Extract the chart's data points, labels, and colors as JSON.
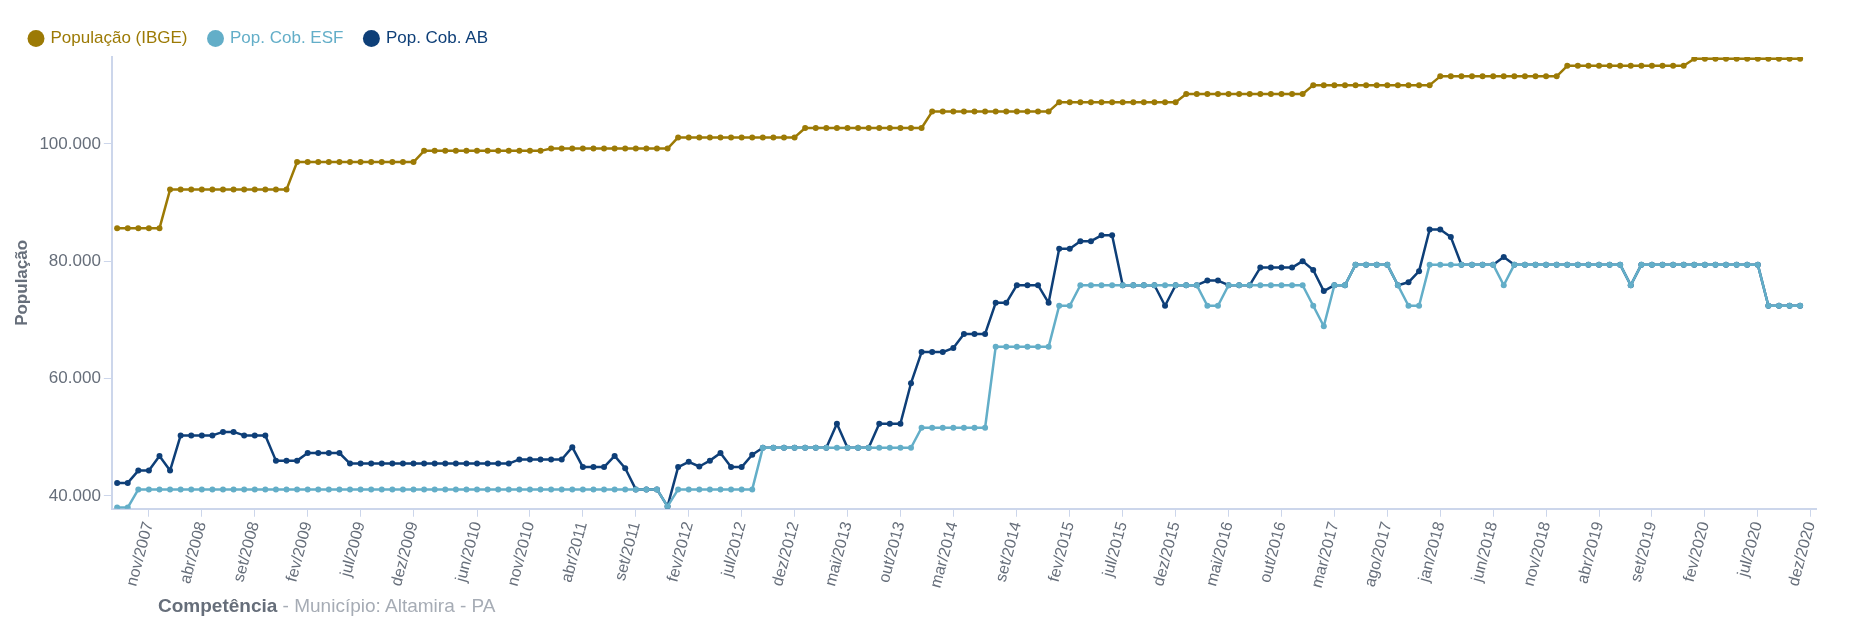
{
  "chart_data": {
    "type": "line",
    "ylabel": "População",
    "xlabel": "Competência",
    "subtitle": "- Município: Altamira - PA",
    "categories": [
      null,
      null,
      null,
      "nov/2007",
      null,
      null,
      null,
      null,
      "abr/2008",
      null,
      null,
      null,
      null,
      "set/2008",
      null,
      null,
      null,
      null,
      "fev/2009",
      null,
      null,
      null,
      null,
      "jul/2009",
      null,
      null,
      null,
      null,
      "dez/2009",
      null,
      null,
      null,
      null,
      null,
      "jun/2010",
      null,
      null,
      null,
      null,
      "nov/2010",
      null,
      null,
      null,
      null,
      "abr/2011",
      null,
      null,
      null,
      null,
      "set/2011",
      null,
      null,
      null,
      null,
      "fev/2012",
      null,
      null,
      null,
      null,
      "jul/2012",
      null,
      null,
      null,
      null,
      "dez/2012",
      null,
      null,
      null,
      null,
      "mai/2013",
      null,
      null,
      null,
      null,
      "out/2013",
      null,
      null,
      null,
      null,
      "mar/2014",
      null,
      null,
      null,
      null,
      null,
      "set/2014",
      null,
      null,
      null,
      null,
      "fev/2015",
      null,
      null,
      null,
      null,
      "jul/2015",
      null,
      null,
      null,
      null,
      "dez/2015",
      null,
      null,
      null,
      null,
      "mai/2016",
      null,
      null,
      null,
      null,
      "out/2016",
      null,
      null,
      null,
      null,
      "mar/2017",
      null,
      null,
      null,
      null,
      "ago/2017",
      null,
      null,
      null,
      null,
      "jan/2018",
      null,
      null,
      null,
      null,
      "jun/2018",
      null,
      null,
      null,
      null,
      "nov/2018",
      null,
      null,
      null,
      null,
      "abr/2019",
      null,
      null,
      null,
      null,
      "set/2019",
      null,
      null,
      null,
      null,
      "fev/2020",
      null,
      null,
      null,
      null,
      "jul/2020",
      null,
      null,
      null,
      null,
      "dez/2020"
    ],
    "series": [
      {
        "name": "População (IBGE)",
        "color": "#9c7a05",
        "values": [
          85600,
          85600,
          85600,
          85600,
          85600,
          92200,
          92200,
          92200,
          92200,
          92200,
          92200,
          92200,
          92200,
          92200,
          92200,
          92200,
          92200,
          96900,
          96900,
          96900,
          96900,
          96900,
          96900,
          96900,
          96900,
          96900,
          96900,
          96900,
          96900,
          98800,
          98800,
          98800,
          98800,
          98800,
          98800,
          98800,
          98800,
          98800,
          98800,
          98800,
          98800,
          99200,
          99200,
          99200,
          99200,
          99200,
          99200,
          99200,
          99200,
          99200,
          99200,
          99200,
          99200,
          101100,
          101100,
          101100,
          101100,
          101100,
          101100,
          101100,
          101100,
          101100,
          101100,
          101100,
          101100,
          102700,
          102700,
          102700,
          102700,
          102700,
          102700,
          102700,
          102700,
          102700,
          102700,
          102700,
          102700,
          105500,
          105500,
          105500,
          105500,
          105500,
          105500,
          105500,
          105500,
          105500,
          105500,
          105500,
          105500,
          107100,
          107100,
          107100,
          107100,
          107100,
          107100,
          107100,
          107100,
          107100,
          107100,
          107100,
          107100,
          108500,
          108500,
          108500,
          108500,
          108500,
          108500,
          108500,
          108500,
          108500,
          108500,
          108500,
          108500,
          110000,
          110000,
          110000,
          110000,
          110000,
          110000,
          110000,
          110000,
          110000,
          110000,
          110000,
          110000,
          111500,
          111500,
          111500,
          111500,
          111500,
          111500,
          111500,
          111500,
          111500,
          111500,
          111500,
          111500,
          113300,
          113300,
          113300,
          113300,
          113300,
          113300,
          113300,
          113300,
          113300,
          113300,
          113300,
          113300,
          114500,
          114500,
          114500,
          114500,
          114500,
          114500,
          114500,
          114500,
          114500,
          114500,
          114500,
          null
        ]
      },
      {
        "name": "Pop. Cob. ESF",
        "color": "#63aec8",
        "values": [
          38000,
          38000,
          41100,
          41100,
          41100,
          41100,
          41100,
          41100,
          41100,
          41100,
          41100,
          41100,
          41100,
          41100,
          41100,
          41100,
          41100,
          41100,
          41100,
          41100,
          41100,
          41100,
          41100,
          41100,
          41100,
          41100,
          41100,
          41100,
          41100,
          41100,
          41100,
          41100,
          41100,
          41100,
          41100,
          41100,
          41100,
          41100,
          41100,
          41100,
          41100,
          41100,
          41100,
          41100,
          41100,
          41100,
          41100,
          41100,
          41100,
          41100,
          41100,
          41100,
          38200,
          41100,
          41100,
          41100,
          41100,
          41100,
          41100,
          41100,
          41100,
          48200,
          48200,
          48200,
          48200,
          48200,
          48200,
          48200,
          48200,
          48200,
          48200,
          48200,
          48200,
          48200,
          48200,
          48200,
          51600,
          51600,
          51600,
          51600,
          51600,
          51600,
          51600,
          65400,
          65400,
          65400,
          65400,
          65400,
          65400,
          72400,
          72400,
          75900,
          75900,
          75900,
          75900,
          75900,
          75900,
          75900,
          75900,
          75900,
          75900,
          75900,
          75900,
          72400,
          72400,
          75900,
          75900,
          75900,
          75900,
          75900,
          75900,
          75900,
          75900,
          72400,
          68900,
          75900,
          75900,
          79400,
          79400,
          79400,
          79400,
          75900,
          72400,
          72400,
          79400,
          79400,
          79400,
          79400,
          79400,
          79400,
          79400,
          75900,
          79400,
          79400,
          79400,
          79400,
          79400,
          79400,
          79400,
          79400,
          79400,
          79400,
          79400,
          75900,
          79400,
          79400,
          79400,
          79400,
          79400,
          79400,
          79400,
          79400,
          79400,
          79400,
          79400,
          79400,
          72400,
          72400,
          72400,
          72400,
          null
        ]
      },
      {
        "name": "Pop. Cob. AB",
        "color": "#0e3f78",
        "values": [
          42200,
          42200,
          44300,
          44300,
          46800,
          44300,
          50300,
          50300,
          50300,
          50300,
          50900,
          50900,
          50300,
          50300,
          50300,
          46000,
          46000,
          46000,
          47300,
          47300,
          47300,
          47300,
          45500,
          45500,
          45500,
          45500,
          45500,
          45500,
          45500,
          45500,
          45500,
          45500,
          45500,
          45500,
          45500,
          45500,
          45500,
          45500,
          46200,
          46200,
          46200,
          46200,
          46200,
          48300,
          44900,
          44900,
          44900,
          46800,
          44700,
          41100,
          41100,
          41100,
          38200,
          44900,
          45800,
          45000,
          46000,
          47300,
          44900,
          44900,
          47000,
          48200,
          48200,
          48200,
          48200,
          48200,
          48200,
          48200,
          52300,
          48200,
          48200,
          48200,
          52300,
          52300,
          52300,
          59200,
          64500,
          64500,
          64500,
          65200,
          67600,
          67600,
          67600,
          72900,
          72900,
          75900,
          75900,
          75900,
          72900,
          82100,
          82100,
          83400,
          83400,
          84400,
          84400,
          75900,
          75900,
          75900,
          75900,
          72400,
          75900,
          75900,
          75900,
          76700,
          76700,
          75900,
          75900,
          75900,
          78900,
          78900,
          78900,
          78900,
          80000,
          78500,
          74900,
          75900,
          75900,
          79400,
          79400,
          79400,
          79400,
          75900,
          76400,
          78300,
          85400,
          85400,
          84100,
          79400,
          79400,
          79400,
          79400,
          80700,
          79400,
          79400,
          79400,
          79400,
          79400,
          79400,
          79400,
          79400,
          79400,
          79400,
          79400,
          75900,
          79400,
          79400,
          79400,
          79400,
          79400,
          79400,
          79400,
          79400,
          79400,
          79400,
          79400,
          79400,
          72400,
          72400,
          72400,
          72400,
          null
        ]
      }
    ],
    "ylim": [
      37800,
      114800
    ],
    "yticks": [
      {
        "value": 40000,
        "label": "40.000"
      },
      {
        "value": 60000,
        "label": "60.000"
      },
      {
        "value": 80000,
        "label": "80.000"
      },
      {
        "value": 100000,
        "label": "100.000"
      }
    ],
    "grid": false,
    "legend": "top left",
    "marker": "circle",
    "line_style": "solid"
  }
}
